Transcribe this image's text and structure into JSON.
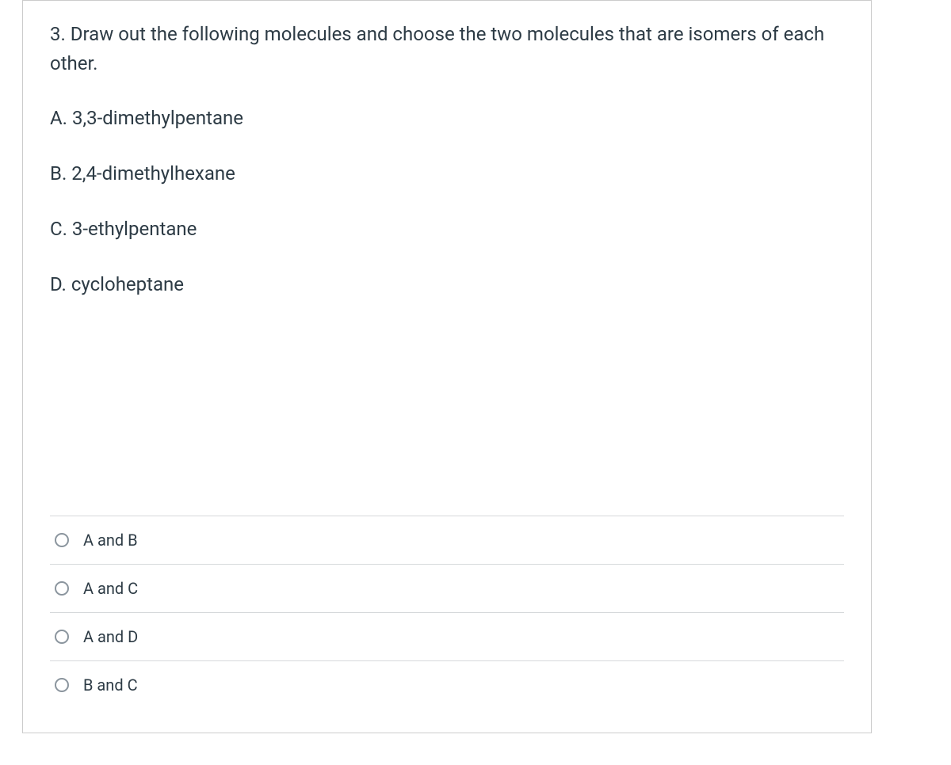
{
  "colors": {
    "text": "#2d3b45",
    "border": "#cccccc",
    "divider": "#d6d9db",
    "radio_border": "#8b959e",
    "background": "#ffffff"
  },
  "typography": {
    "question_fontsize": 24,
    "item_fontsize": 24,
    "option_fontsize": 20,
    "font_family": "-apple-system, BlinkMacSystemFont, Segoe UI, Roboto, Helvetica Neue, Arial, sans-serif"
  },
  "question": {
    "prompt": "3. Draw out the following molecules and choose the two molecules that are isomers of each other.",
    "items": [
      "A. 3,3-dimethylpentane",
      "B. 2,4-dimethylhexane",
      "C. 3-ethylpentane",
      "D. cycloheptane"
    ]
  },
  "options": [
    {
      "label": "A and B"
    },
    {
      "label": "A and C"
    },
    {
      "label": "A and D"
    },
    {
      "label": "B and C"
    }
  ]
}
